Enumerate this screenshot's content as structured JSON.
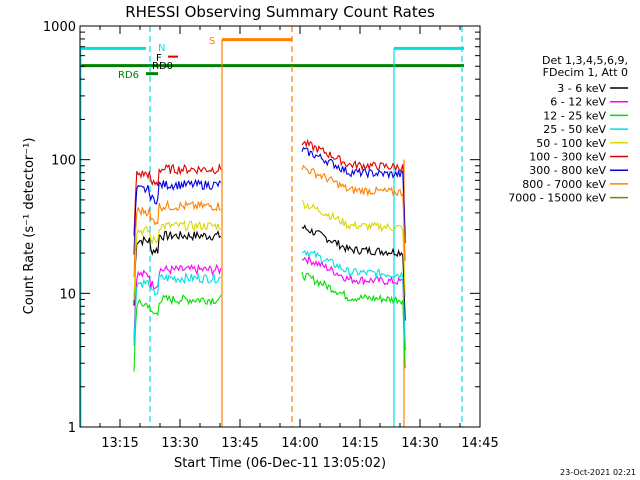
{
  "chart_data": {
    "type": "line",
    "title": "RHESSI Observing Summary Count Rates",
    "xlabel": "Start Time (06-Dec-11 13:05:02)",
    "ylabel": "Count Rate (s⁻¹ detector⁻¹)",
    "y_scale": "log",
    "ylim": [
      1,
      1000
    ],
    "xlim_minutes_since_13_05": [
      0,
      100
    ],
    "x_ticks": [
      {
        "label": "13:15",
        "t": 10
      },
      {
        "label": "13:30",
        "t": 25
      },
      {
        "label": "13:45",
        "t": 40
      },
      {
        "label": "14:00",
        "t": 55
      },
      {
        "label": "14:15",
        "t": 70
      },
      {
        "label": "14:30",
        "t": 85
      },
      {
        "label": "14:45",
        "t": 100
      }
    ],
    "y_ticks": [
      {
        "label": "1",
        "v": 1
      },
      {
        "label": "10",
        "v": 10
      },
      {
        "label": "100",
        "v": 100
      },
      {
        "label": "1000",
        "v": 1000
      }
    ],
    "legend_header": [
      "Det 1,3,4,5,6,9,",
      "FDecim 1, Att 0"
    ],
    "legend_position": "right",
    "series": [
      {
        "name": "3 - 6 keV",
        "color": "#000000",
        "level_a": 27,
        "level_b": 25
      },
      {
        "name": "6 - 12 keV",
        "color": "#ff00ff",
        "level_a": 15,
        "level_b": 15
      },
      {
        "name": "12 - 25 keV",
        "color": "#00e000",
        "level_a": 9,
        "level_b": 11
      },
      {
        "name": "25 - 50 keV",
        "color": "#00e0e0",
        "level_a": 13,
        "level_b": 17
      },
      {
        "name": "50 - 100 keV",
        "color": "#d8d800",
        "level_a": 32,
        "level_b": 38
      },
      {
        "name": "100 - 300 keV",
        "color": "#e00000",
        "level_a": 85,
        "level_b": 108
      },
      {
        "name": "300 - 800 keV",
        "color": "#0000e0",
        "level_a": 65,
        "level_b": 95
      },
      {
        "name": "800 - 7000 keV",
        "color": "#ff8000",
        "level_a": 45,
        "level_b": 70
      },
      {
        "name": "7000 - 15000 keV",
        "color": "#808000",
        "level_a": null,
        "level_b": null
      }
    ],
    "flag_labels": {
      "n": "N",
      "f": "F",
      "rd0": "RD0",
      "rd6": "RD6",
      "s": "S"
    }
  },
  "footer": {
    "timestamp": "23-Oct-2021 02:21"
  }
}
